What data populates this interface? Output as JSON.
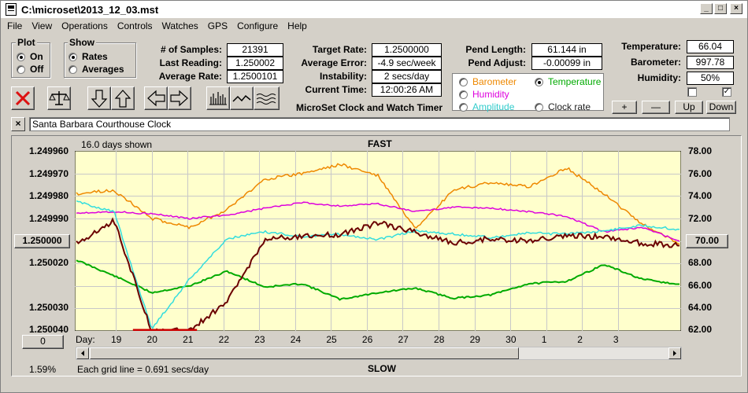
{
  "window": {
    "title": "C:\\microset\\2013_12_03.mst"
  },
  "menu": [
    "File",
    "View",
    "Operations",
    "Controls",
    "Watches",
    "GPS",
    "Configure",
    "Help"
  ],
  "plot_group": {
    "title": "Plot",
    "on": "On",
    "off": "Off",
    "selected": "On"
  },
  "show_group": {
    "title": "Show",
    "rates": "Rates",
    "averages": "Averages",
    "selected": "Rates"
  },
  "stats": {
    "samples_label": "# of Samples:",
    "samples_value": "21391",
    "last_label": "Last Reading:",
    "last_value": "1.250002",
    "avg_label": "Average Rate:",
    "avg_value": "1.2500101",
    "target_label": "Target Rate:",
    "target_value": "1.2500000",
    "avgerr_label": "Average Error:",
    "avgerr_value": "-4.9 sec/week",
    "instab_label": "Instability:",
    "instab_value": "2 secs/day",
    "time_label": "Current Time:",
    "time_value": "12:00:26 AM",
    "pendlen_label": "Pend Length:",
    "pendlen_value": "61.144 in",
    "pendadj_label": "Pend Adjust:",
    "pendadj_value": "-0.00099 in",
    "temp_label": "Temperature:",
    "temp_value": "66.04",
    "baro_label": "Barometer:",
    "baro_value": "997.78",
    "hum_label": "Humidity:",
    "hum_value": "50%"
  },
  "app_caption": "MicroSet Clock and Watch Timer",
  "sensor_options": {
    "barometer": "Barometer",
    "temperature": "Temperature",
    "humidity": "Humidity",
    "amplitude": "Amplitude",
    "clock_rate": "Clock rate",
    "selected": "Temperature"
  },
  "scale_buttons": {
    "plus": "+",
    "minus": "—",
    "up": "Up",
    "down": "Down"
  },
  "checkboxes": {
    "left_checked": false,
    "right_checked": true,
    "check_glyph": "✓"
  },
  "close_glyph": "×",
  "clock_name": "Santa Barbara Courthouse Clock",
  "chart": {
    "days_shown": "16.0 days shown",
    "top_caption": "FAST",
    "bottom_caption": "SLOW",
    "grid_note": "Each grid line = 0.691 secs/day",
    "percent": "1.59%",
    "day_label": "Day:",
    "left_value_button": "1.250000",
    "right_value_button": "70.00",
    "bottom_left_button": "0",
    "colors": {
      "background": "#ffffcc",
      "grid": "#c8c8c8",
      "rate": "#6b0000",
      "avg": "#cc0000",
      "temperature": "#00aa00",
      "barometer": "#ee8800",
      "humidity": "#dd00dd",
      "amplitude": "#33dddd"
    }
  },
  "chart_data": {
    "type": "line",
    "title": "",
    "y_left_ticks": [
      "1.249960",
      "1.249970",
      "1.249980",
      "1.249990",
      "1.250000",
      "1.250020",
      "1.250030",
      "1.250040"
    ],
    "y_right_ticks": [
      "78.00",
      "76.00",
      "74.00",
      "72.00",
      "70.00",
      "68.00",
      "66.00",
      "64.00",
      "62.00"
    ],
    "x_ticks": [
      "19",
      "20",
      "21",
      "22",
      "23",
      "24",
      "25",
      "26",
      "27",
      "28",
      "29",
      "30",
      "1",
      "2",
      "3"
    ],
    "right_axis_range": [
      62,
      78
    ],
    "series": [
      {
        "name": "Temperature",
        "x": [
          0,
          1,
          2,
          3,
          4,
          5,
          6,
          7,
          8,
          9,
          10,
          11,
          12,
          13,
          14,
          15,
          16
        ],
        "values": [
          68.3,
          66.9,
          65.4,
          66.0,
          67.3,
          65.9,
          66.2,
          64.8,
          65.4,
          65.8,
          64.9,
          65.2,
          66.2,
          66.4,
          67.9,
          66.6,
          66.1
        ]
      },
      {
        "name": "Barometer",
        "x": [
          0,
          1,
          2,
          3,
          4,
          5,
          6,
          7,
          8,
          9,
          10,
          11,
          12,
          13,
          14,
          15,
          16
        ],
        "values": [
          74.2,
          74.5,
          72.0,
          71.2,
          72.8,
          75.5,
          76.0,
          76.8,
          75.8,
          71.0,
          74.5,
          75.2,
          74.8,
          76.5,
          74.2,
          71.5,
          69.8
        ]
      },
      {
        "name": "Humidity",
        "x": [
          0,
          1,
          2,
          3,
          4,
          5,
          6,
          7,
          8,
          9,
          10,
          11,
          12,
          13,
          14,
          15,
          16
        ],
        "values": [
          72.5,
          72.6,
          72.4,
          72.0,
          72.3,
          72.9,
          73.4,
          73.1,
          73.3,
          72.6,
          73.0,
          72.9,
          72.6,
          72.2,
          70.8,
          71.2,
          70.0
        ]
      },
      {
        "name": "Amplitude",
        "x": [
          0,
          1,
          2,
          3,
          4,
          5,
          6,
          7,
          8,
          9,
          10,
          11,
          12,
          13,
          14,
          15,
          16
        ],
        "values": [
          73.5,
          72.6,
          62.2,
          66.6,
          70.2,
          70.8,
          70.4,
          70.6,
          70.1,
          70.9,
          70.6,
          70.3,
          70.7,
          70.6,
          70.9,
          71.4,
          71.0
        ]
      },
      {
        "name": "Rate",
        "x": [
          0,
          1,
          2,
          3,
          4,
          5,
          6,
          7,
          8,
          9,
          10,
          11,
          12,
          13,
          14,
          15,
          16
        ],
        "values": [
          1.250001,
          1.249991,
          1.25004,
          1.25004,
          1.250027,
          1.249999,
          1.249998,
          1.249997,
          1.249992,
          1.249996,
          1.250001,
          1.249999,
          1.25,
          1.249998,
          1.249998,
          1.250001,
          1.250002
        ]
      }
    ]
  }
}
